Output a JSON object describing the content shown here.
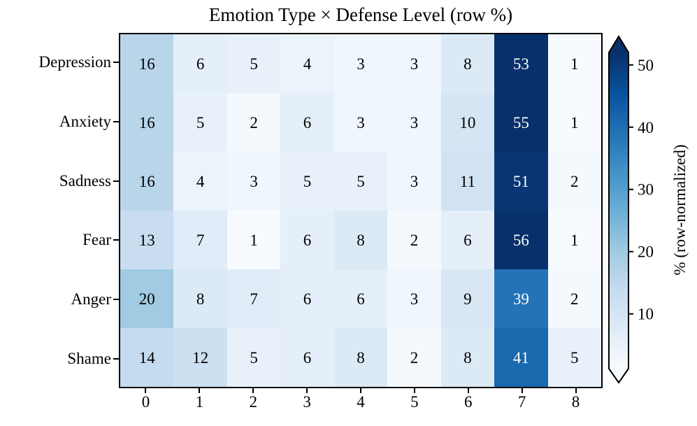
{
  "title": "Emotion Type × Defense Level (row %)",
  "chart_data": {
    "type": "heatmap",
    "title": "Emotion Type × Defense Level (row %)",
    "rows": [
      "Depression",
      "Anxiety",
      "Sadness",
      "Fear",
      "Anger",
      "Shame"
    ],
    "columns": [
      "0",
      "1",
      "2",
      "3",
      "4",
      "5",
      "6",
      "7",
      "8"
    ],
    "values": [
      [
        16,
        6,
        5,
        4,
        3,
        3,
        8,
        53,
        1
      ],
      [
        16,
        5,
        2,
        6,
        3,
        3,
        10,
        55,
        1
      ],
      [
        16,
        4,
        3,
        5,
        5,
        3,
        11,
        51,
        2
      ],
      [
        13,
        7,
        1,
        6,
        8,
        2,
        6,
        56,
        1
      ],
      [
        20,
        8,
        7,
        6,
        6,
        3,
        9,
        39,
        2
      ],
      [
        14,
        12,
        5,
        6,
        8,
        2,
        8,
        41,
        5
      ]
    ],
    "cell_value_suffix": "",
    "colorbar": {
      "label": "% (row-normalized)",
      "ticks": [
        10,
        20,
        30,
        40,
        50
      ],
      "vmin": 1.2,
      "vmax": 52,
      "extend": "both"
    },
    "colormap": {
      "name": "Blues",
      "stops": [
        "#f7fbff",
        "#deebf7",
        "#c6dbef",
        "#9ecae1",
        "#6baed6",
        "#4292c6",
        "#2171b5",
        "#08519c",
        "#08306b"
      ]
    },
    "text_colors": {
      "light_cell": "#000000",
      "dark_cell": "#ffffff"
    },
    "layout": {
      "grid": false,
      "legend_position": "right-colorbar"
    }
  }
}
